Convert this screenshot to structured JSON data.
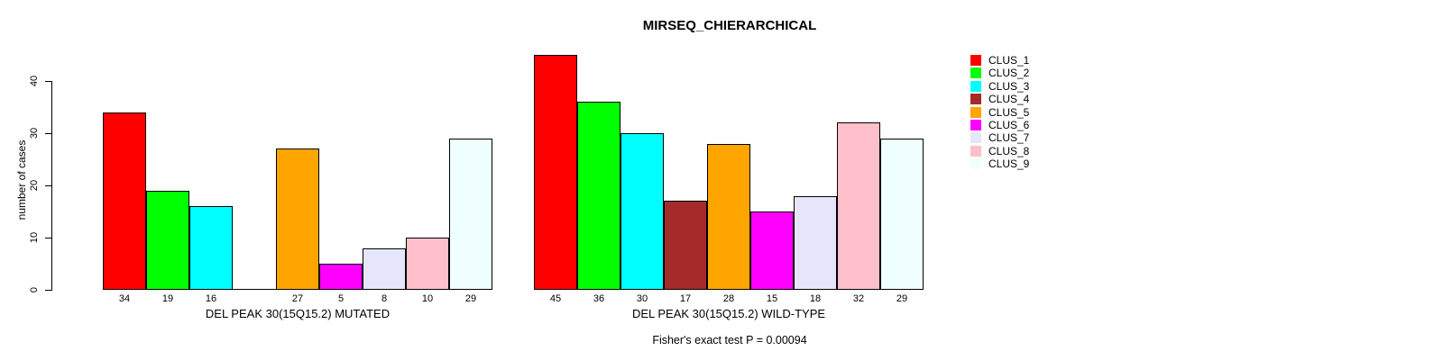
{
  "chart_data": {
    "type": "bar",
    "title": "MIRSEQ_CHIERARCHICAL",
    "ylabel": "number of cases",
    "ylim": [
      0,
      45
    ],
    "yticks": [
      0,
      10,
      20,
      30,
      40
    ],
    "grid": false,
    "legend": {
      "position": "right",
      "items": [
        {
          "label": "CLUS_1",
          "color": "#FF0000"
        },
        {
          "label": "CLUS_2",
          "color": "#00FF00"
        },
        {
          "label": "CLUS_3",
          "color": "#00FFFF"
        },
        {
          "label": "CLUS_4",
          "color": "#A52A2A"
        },
        {
          "label": "CLUS_5",
          "color": "#FFA500"
        },
        {
          "label": "CLUS_6",
          "color": "#FF00FF"
        },
        {
          "label": "CLUS_7",
          "color": "#E6E6FA"
        },
        {
          "label": "CLUS_8",
          "color": "#FFC0CB"
        },
        {
          "label": "CLUS_9",
          "color": "#F0FFFF"
        }
      ]
    },
    "groups": [
      {
        "xlabel": "DEL PEAK 30(15Q15.2) MUTATED",
        "values": [
          34,
          19,
          16,
          0,
          27,
          5,
          8,
          10,
          29
        ],
        "bar_labels": [
          "34",
          "19",
          "16",
          "",
          "27",
          "5",
          "8",
          "10",
          "29"
        ]
      },
      {
        "xlabel": "DEL PEAK 30(15Q15.2) WILD-TYPE",
        "values": [
          45,
          36,
          30,
          17,
          28,
          15,
          18,
          32,
          29
        ],
        "bar_labels": [
          "45",
          "36",
          "30",
          "17",
          "28",
          "15",
          "18",
          "32",
          "29"
        ]
      }
    ],
    "annotation": "Fisher's exact test P = 0.00094"
  }
}
